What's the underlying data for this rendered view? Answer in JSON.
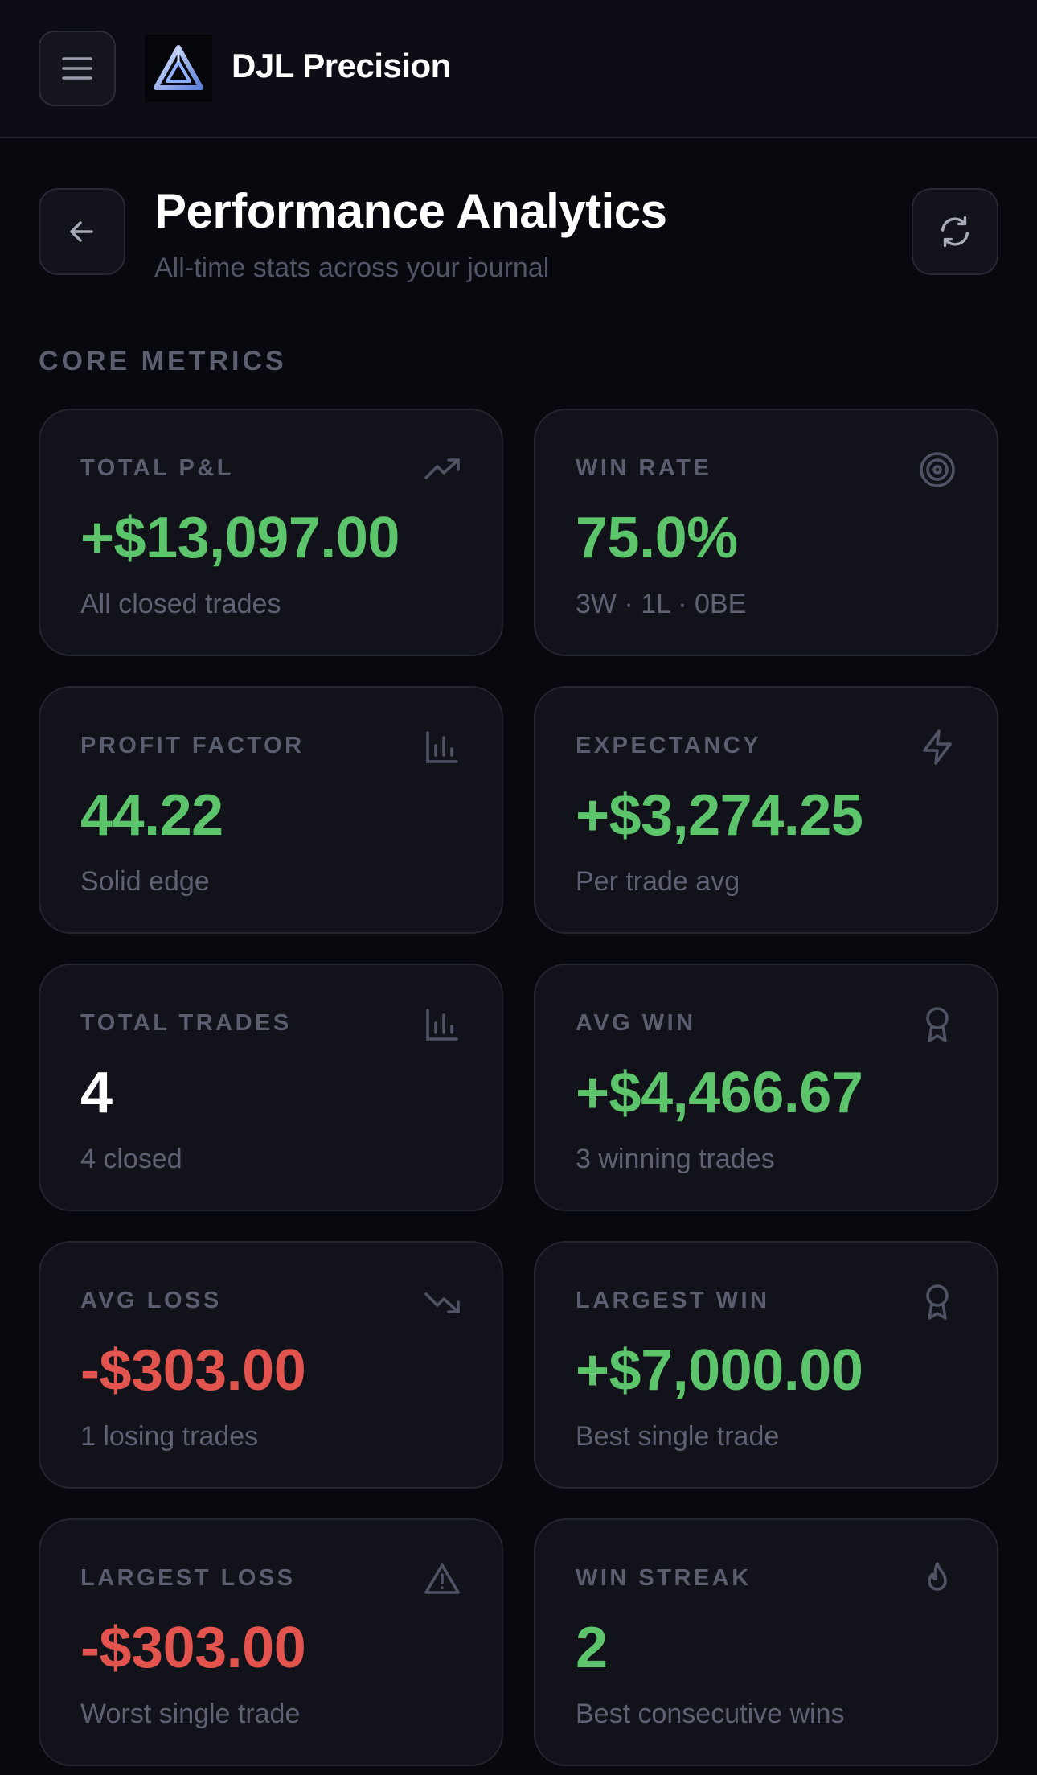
{
  "app": {
    "brand": "DJL Precision"
  },
  "header": {
    "title": "Performance Analytics",
    "subtitle": "All-time stats across your journal"
  },
  "section": {
    "label": "CORE METRICS"
  },
  "colors": {
    "positive": "#5cc46a",
    "negative": "#e2544d",
    "neutral": "#ffffff"
  },
  "metrics": [
    {
      "label": "TOTAL P&L",
      "value": "+$13,097.00",
      "sub": "All closed trades",
      "icon": "trending-up-icon",
      "tone": "positive"
    },
    {
      "label": "WIN RATE",
      "value": "75.0%",
      "sub": "3W · 1L · 0BE",
      "icon": "target-icon",
      "tone": "positive"
    },
    {
      "label": "PROFIT FACTOR",
      "value": "44.22",
      "sub": "Solid edge",
      "icon": "bar-chart-icon",
      "tone": "positive"
    },
    {
      "label": "EXPECTANCY",
      "value": "+$3,274.25",
      "sub": "Per trade avg",
      "icon": "lightning-icon",
      "tone": "positive"
    },
    {
      "label": "TOTAL TRADES",
      "value": "4",
      "sub": "4 closed",
      "icon": "bar-chart-icon",
      "tone": "neutral"
    },
    {
      "label": "AVG WIN",
      "value": "+$4,466.67",
      "sub": "3 winning trades",
      "icon": "award-icon",
      "tone": "positive"
    },
    {
      "label": "AVG LOSS",
      "value": "-$303.00",
      "sub": "1 losing trades",
      "icon": "trending-down-icon",
      "tone": "negative"
    },
    {
      "label": "LARGEST WIN",
      "value": "+$7,000.00",
      "sub": "Best single trade",
      "icon": "award-icon",
      "tone": "positive"
    },
    {
      "label": "LARGEST LOSS",
      "value": "-$303.00",
      "sub": "Worst single trade",
      "icon": "warning-icon",
      "tone": "negative"
    },
    {
      "label": "WIN STREAK",
      "value": "2",
      "sub": "Best consecutive wins",
      "icon": "flame-icon",
      "tone": "positive"
    }
  ]
}
